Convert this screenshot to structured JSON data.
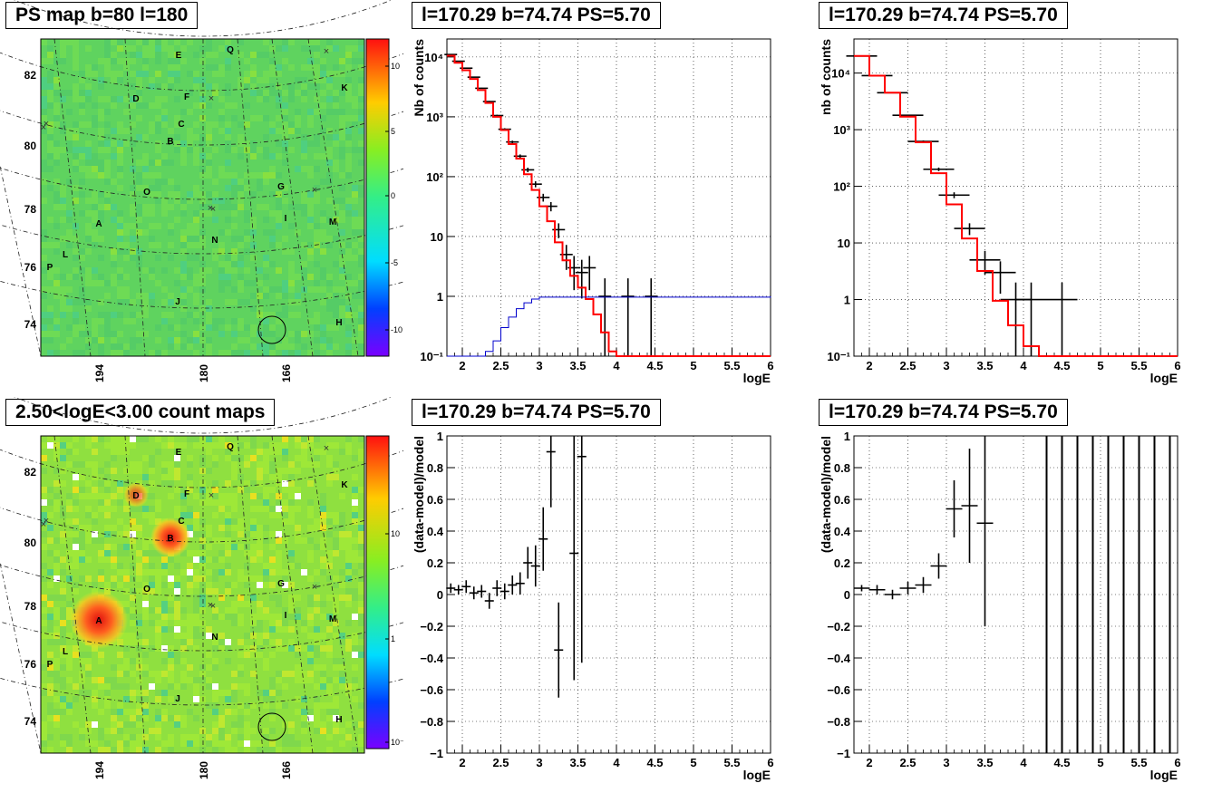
{
  "panels": {
    "map1": {
      "title": "PS map b=80 l=180"
    },
    "map2": {
      "title": "2.50<logE<3.00 count maps"
    },
    "spec1": {
      "title": "l=170.29 b=74.74 PS=5.70"
    },
    "spec2": {
      "title": "l=170.29 b=74.74 PS=5.70"
    },
    "res1": {
      "title": "l=170.29 b=74.74 PS=5.70"
    },
    "res2": {
      "title": "l=170.29 b=74.74 PS=5.70"
    }
  },
  "maps": {
    "ytick_labels": [
      "74",
      "76",
      "78",
      "80",
      "82"
    ],
    "xtick_labels": [
      "194",
      "180",
      "166"
    ],
    "source_labels": [
      "E",
      "Q",
      "K",
      "D",
      "F",
      "C",
      "B",
      "O",
      "G",
      "A",
      "I",
      "M",
      "L",
      "N",
      "P",
      "J",
      "H"
    ],
    "colorbar1_ticks": [
      "10",
      "5",
      "0",
      "-5",
      "-10"
    ],
    "colorbar2_ticks": [
      "10",
      "1",
      "10⁻¹"
    ]
  },
  "chart_data": [
    {
      "type": "line",
      "title": "l=170.29 b=74.74 PS=5.70",
      "xlabel": "logE",
      "ylabel": "Nb of counts",
      "xlim": [
        1.8,
        6
      ],
      "ylim": [
        0.1,
        20000
      ],
      "yscale": "log",
      "x_ticks": [
        "2",
        "2.5",
        "3",
        "3.5",
        "4",
        "4.5",
        "5",
        "5.5",
        "6"
      ],
      "y_ticks": [
        "10⁻¹",
        "1",
        "10",
        "10²",
        "10³",
        "10⁴"
      ],
      "grid": true,
      "series": [
        {
          "style": "points",
          "color": "#000000",
          "x": [
            1.85,
            1.95,
            2.05,
            2.15,
            2.25,
            2.35,
            2.45,
            2.55,
            2.65,
            2.75,
            2.85,
            2.95,
            3.05,
            3.15,
            3.25,
            3.35,
            3.45,
            3.55,
            3.65,
            3.85,
            4.15,
            4.45
          ],
          "y": [
            11000,
            8500,
            6500,
            4600,
            3000,
            1800,
            1050,
            620,
            380,
            220,
            130,
            75,
            45,
            32,
            13,
            5,
            3,
            2.5,
            3,
            1,
            1,
            1
          ]
        },
        {
          "style": "step",
          "color": "#ff0000",
          "x": [
            1.8,
            1.9,
            2.0,
            2.1,
            2.2,
            2.3,
            2.4,
            2.5,
            2.6,
            2.7,
            2.8,
            2.9,
            3.0,
            3.1,
            3.2,
            3.3,
            3.4,
            3.5,
            3.6,
            3.7,
            3.8,
            3.9,
            4.0
          ],
          "y": [
            10500,
            8000,
            6000,
            4300,
            2800,
            1700,
            1000,
            600,
            350,
            200,
            110,
            60,
            32,
            18,
            8,
            4,
            2.2,
            1.4,
            0.9,
            0.5,
            0.25,
            0.12,
            0.1
          ]
        },
        {
          "style": "step",
          "color": "#0000cc",
          "x": [
            1.8,
            2.2,
            2.3,
            2.4,
            2.5,
            2.6,
            2.7,
            2.8,
            2.9,
            3.0,
            6.0
          ],
          "y": [
            0.09,
            0.09,
            0.12,
            0.18,
            0.3,
            0.45,
            0.62,
            0.78,
            0.9,
            0.97,
            1.0
          ]
        }
      ]
    },
    {
      "type": "line",
      "title": "l=170.29 b=74.74 PS=5.70",
      "xlabel": "logE",
      "ylabel": "nb of counts",
      "xlim": [
        1.8,
        6
      ],
      "ylim": [
        0.1,
        40000
      ],
      "yscale": "log",
      "x_ticks": [
        "2",
        "2.5",
        "3",
        "3.5",
        "4",
        "4.5",
        "5",
        "5.5",
        "6"
      ],
      "y_ticks": [
        "10⁻¹",
        "1",
        "10",
        "10²",
        "10³",
        "10⁴"
      ],
      "grid": true,
      "series": [
        {
          "style": "points",
          "color": "#000000",
          "x": [
            1.9,
            2.1,
            2.3,
            2.5,
            2.7,
            2.9,
            3.1,
            3.3,
            3.5,
            3.7,
            3.9,
            4.1,
            4.5
          ],
          "y": [
            20000,
            9000,
            4500,
            1800,
            620,
            200,
            70,
            18,
            5,
            3,
            1,
            1,
            1
          ]
        },
        {
          "style": "step",
          "color": "#ff0000",
          "x": [
            1.8,
            2.0,
            2.2,
            2.4,
            2.6,
            2.8,
            3.0,
            3.2,
            3.4,
            3.6,
            3.8,
            4.0,
            4.2,
            6.0
          ],
          "y": [
            20000,
            9000,
            4500,
            1700,
            600,
            170,
            48,
            12,
            3.2,
            0.95,
            0.35,
            0.15,
            0.1,
            0.1
          ]
        }
      ]
    },
    {
      "type": "scatter",
      "title": "l=170.29 b=74.74 PS=5.70",
      "xlabel": "logE",
      "ylabel": "(data-model)/model",
      "xlim": [
        1.8,
        6
      ],
      "ylim": [
        -1,
        1
      ],
      "x_ticks": [
        "2",
        "2.5",
        "3",
        "3.5",
        "4",
        "4.5",
        "5",
        "5.5",
        "6"
      ],
      "y_ticks": [
        "−1",
        "−0.8",
        "−0.6",
        "−0.4",
        "−0.2",
        "0",
        "0.2",
        "0.4",
        "0.6",
        "0.8",
        "1"
      ],
      "grid": true,
      "points": [
        {
          "x": 1.85,
          "y": 0.04,
          "err": 0.03
        },
        {
          "x": 1.95,
          "y": 0.03,
          "err": 0.03
        },
        {
          "x": 2.05,
          "y": 0.05,
          "err": 0.04
        },
        {
          "x": 2.15,
          "y": 0.01,
          "err": 0.04
        },
        {
          "x": 2.25,
          "y": 0.02,
          "err": 0.04
        },
        {
          "x": 2.35,
          "y": -0.04,
          "err": 0.05
        },
        {
          "x": 2.45,
          "y": 0.04,
          "err": 0.05
        },
        {
          "x": 2.55,
          "y": 0.02,
          "err": 0.05
        },
        {
          "x": 2.65,
          "y": 0.06,
          "err": 0.06
        },
        {
          "x": 2.75,
          "y": 0.07,
          "err": 0.07
        },
        {
          "x": 2.85,
          "y": 0.2,
          "err": 0.1
        },
        {
          "x": 2.95,
          "y": 0.18,
          "err": 0.13
        },
        {
          "x": 3.05,
          "y": 0.35,
          "err": 0.2
        },
        {
          "x": 3.15,
          "y": 0.9,
          "err": 0.35
        },
        {
          "x": 3.25,
          "y": -0.35,
          "err": 0.3
        },
        {
          "x": 3.45,
          "y": 0.26,
          "err": 0.8
        },
        {
          "x": 3.55,
          "y": 0.87,
          "err": 1.3
        }
      ]
    },
    {
      "type": "scatter",
      "title": "l=170.29 b=74.74 PS=5.70",
      "xlabel": "logE",
      "ylabel": "(data-model)/model",
      "xlim": [
        1.8,
        6
      ],
      "ylim": [
        -1,
        1
      ],
      "x_ticks": [
        "2",
        "2.5",
        "3",
        "3.5",
        "4",
        "4.5",
        "5",
        "5.5",
        "6"
      ],
      "y_ticks": [
        "−1",
        "−0.8",
        "−0.6",
        "−0.4",
        "−0.2",
        "0",
        "0.2",
        "0.4",
        "0.6",
        "0.8",
        "1"
      ],
      "grid": true,
      "points": [
        {
          "x": 1.9,
          "y": 0.04,
          "err": 0.02
        },
        {
          "x": 2.1,
          "y": 0.03,
          "err": 0.03
        },
        {
          "x": 2.3,
          "y": 0.0,
          "err": 0.03
        },
        {
          "x": 2.5,
          "y": 0.04,
          "err": 0.04
        },
        {
          "x": 2.7,
          "y": 0.06,
          "err": 0.05
        },
        {
          "x": 2.9,
          "y": 0.18,
          "err": 0.08
        },
        {
          "x": 3.1,
          "y": 0.54,
          "err": 0.18
        },
        {
          "x": 3.3,
          "y": 0.56,
          "err": 0.36
        },
        {
          "x": 3.5,
          "y": 0.45,
          "err": 0.65
        }
      ],
      "full_bars_x": [
        4.3,
        4.5,
        4.7,
        4.9,
        5.1,
        5.3,
        5.5,
        5.7,
        5.9
      ]
    }
  ]
}
